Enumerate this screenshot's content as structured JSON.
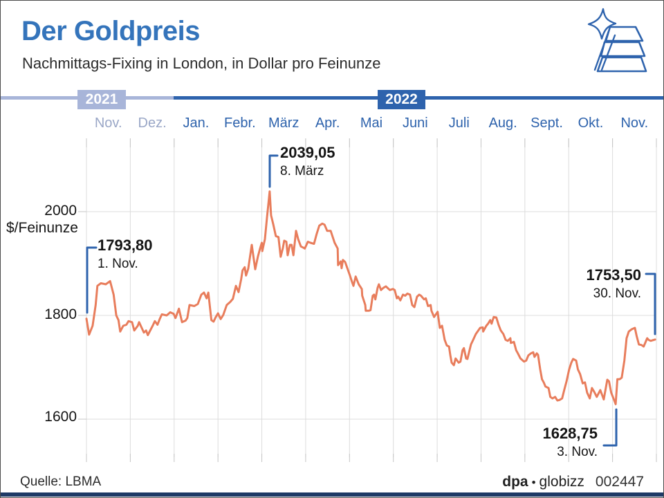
{
  "header": {
    "title": "Der Goldpreis",
    "subtitle": "Nachmittags-Fixing in London, in Dollar pro Feinunze"
  },
  "timeline": {
    "years": [
      {
        "label": "2021"
      },
      {
        "label": "2022"
      }
    ]
  },
  "months": [
    {
      "label": "Nov.",
      "year": "2021"
    },
    {
      "label": "Dez.",
      "year": "2021"
    },
    {
      "label": "Jan.",
      "year": "2022"
    },
    {
      "label": "Febr.",
      "year": "2022"
    },
    {
      "label": "März",
      "year": "2022"
    },
    {
      "label": "Apr.",
      "year": "2022"
    },
    {
      "label": "Mai",
      "year": "2022"
    },
    {
      "label": "Juni",
      "year": "2022"
    },
    {
      "label": "Juli",
      "year": "2022"
    },
    {
      "label": "Aug.",
      "year": "2022"
    },
    {
      "label": "Sept.",
      "year": "2022"
    },
    {
      "label": "Okt.",
      "year": "2022"
    },
    {
      "label": "Nov.",
      "year": "2022"
    }
  ],
  "axis": {
    "unit": "$/Feinunze",
    "ticks": [
      "2000",
      "1800",
      "1600"
    ]
  },
  "annotations": {
    "peak": {
      "value": "2039,05",
      "date": "8. März"
    },
    "start": {
      "value": "1793,80",
      "date": "1. Nov."
    },
    "end": {
      "value": "1753,50",
      "date": "30. Nov."
    },
    "low": {
      "value": "1628,75",
      "date": "3. Nov."
    }
  },
  "footer": {
    "source": "Quelle: LBMA",
    "brand_dpa": "dpa",
    "brand_sep": "•",
    "brand_name": "globizz",
    "code": "002447"
  },
  "colors": {
    "title_blue": "#3474bb",
    "accent_blue": "#2e63ad",
    "light_blue": "#a8b5d9",
    "month_2021": "#9aa7c7",
    "line_color": "#e87d5c",
    "grid_color": "#dcdcdc",
    "tick_color": "#c4c4c4"
  },
  "chart_data": {
    "type": "line",
    "title": "Der Goldpreis",
    "subtitle": "Nachmittags-Fixing in London, in Dollar pro Feinunze",
    "ylabel": "$/Feinunze",
    "x_axis": {
      "start": "1. Nov. 2021",
      "end": "30. Nov. 2022",
      "month_labels": [
        "Nov.",
        "Dez.",
        "Jan.",
        "Febr.",
        "März",
        "Apr.",
        "Mai",
        "Juni",
        "Juli",
        "Aug.",
        "Sept.",
        "Okt.",
        "Nov."
      ]
    },
    "y_axis": {
      "ticks": [
        2000,
        1800,
        1600
      ],
      "range": [
        1580,
        2070
      ],
      "grid": true
    },
    "key_points": {
      "start": {
        "date": "1. Nov. 2021",
        "value": 1793.8
      },
      "peak": {
        "date": "8. März 2022",
        "value": 2039.05
      },
      "low": {
        "date": "3. Nov. 2022",
        "value": 1628.75
      },
      "end": {
        "date": "30. Nov. 2022",
        "value": 1753.5
      }
    },
    "series": [
      {
        "name": "Goldpreis Nachmittags-Fixing London",
        "color": "#e87d5c",
        "x_unit": "months_from_nov_2021",
        "points": [
          [
            0.0,
            1793.8
          ],
          [
            0.06,
            1763
          ],
          [
            0.14,
            1780
          ],
          [
            0.21,
            1820
          ],
          [
            0.25,
            1857
          ],
          [
            0.33,
            1862
          ],
          [
            0.44,
            1860
          ],
          [
            0.54,
            1866
          ],
          [
            0.62,
            1840
          ],
          [
            0.68,
            1800
          ],
          [
            0.73,
            1791
          ],
          [
            0.77,
            1769
          ],
          [
            0.84,
            1780
          ],
          [
            0.91,
            1782
          ],
          [
            0.96,
            1789
          ],
          [
            1.04,
            1787
          ],
          [
            1.09,
            1771
          ],
          [
            1.17,
            1780
          ],
          [
            1.2,
            1787
          ],
          [
            1.31,
            1767
          ],
          [
            1.36,
            1771
          ],
          [
            1.4,
            1762
          ],
          [
            1.51,
            1780
          ],
          [
            1.56,
            1789
          ],
          [
            1.62,
            1782
          ],
          [
            1.67,
            1793
          ],
          [
            1.72,
            1802
          ],
          [
            1.83,
            1800
          ],
          [
            1.91,
            1806
          ],
          [
            1.99,
            1803
          ],
          [
            2.03,
            1795
          ],
          [
            2.11,
            1813
          ],
          [
            2.18,
            1787
          ],
          [
            2.26,
            1790
          ],
          [
            2.3,
            1795
          ],
          [
            2.35,
            1820
          ],
          [
            2.46,
            1818
          ],
          [
            2.54,
            1822
          ],
          [
            2.62,
            1840
          ],
          [
            2.68,
            1844
          ],
          [
            2.74,
            1833
          ],
          [
            2.78,
            1844
          ],
          [
            2.85,
            1791
          ],
          [
            2.9,
            1788
          ],
          [
            2.95,
            1797
          ],
          [
            3.0,
            1804
          ],
          [
            3.06,
            1793
          ],
          [
            3.12,
            1801
          ],
          [
            3.2,
            1820
          ],
          [
            3.28,
            1826
          ],
          [
            3.34,
            1832
          ],
          [
            3.41,
            1857
          ],
          [
            3.47,
            1845
          ],
          [
            3.53,
            1870
          ],
          [
            3.56,
            1887
          ],
          [
            3.61,
            1893
          ],
          [
            3.64,
            1877
          ],
          [
            3.69,
            1890
          ],
          [
            3.77,
            1936
          ],
          [
            3.83,
            1900
          ],
          [
            3.85,
            1889
          ],
          [
            3.91,
            1913
          ],
          [
            3.96,
            1929
          ],
          [
            4.0,
            1940
          ],
          [
            4.01,
            1924
          ],
          [
            4.07,
            1947
          ],
          [
            4.12,
            1990
          ],
          [
            4.18,
            2039.05
          ],
          [
            4.21,
            1993
          ],
          [
            4.26,
            1976
          ],
          [
            4.32,
            1953
          ],
          [
            4.38,
            1951
          ],
          [
            4.43,
            1913
          ],
          [
            4.48,
            1930
          ],
          [
            4.51,
            1944
          ],
          [
            4.56,
            1942
          ],
          [
            4.59,
            1916
          ],
          [
            4.64,
            1936
          ],
          [
            4.68,
            1936
          ],
          [
            4.72,
            1916
          ],
          [
            4.78,
            1963
          ],
          [
            4.83,
            1947
          ],
          [
            4.89,
            1933
          ],
          [
            4.94,
            1931
          ],
          [
            4.98,
            1929
          ],
          [
            5.05,
            1942
          ],
          [
            5.11,
            1940
          ],
          [
            5.19,
            1938
          ],
          [
            5.25,
            1957
          ],
          [
            5.31,
            1973
          ],
          [
            5.38,
            1977
          ],
          [
            5.43,
            1975
          ],
          [
            5.49,
            1963
          ],
          [
            5.57,
            1963
          ],
          [
            5.66,
            1940
          ],
          [
            5.73,
            1929
          ],
          [
            5.74,
            1897
          ],
          [
            5.8,
            1904
          ],
          [
            5.82,
            1891
          ],
          [
            5.85,
            1907
          ],
          [
            5.9,
            1903
          ],
          [
            6.01,
            1877
          ],
          [
            6.06,
            1864
          ],
          [
            6.09,
            1857
          ],
          [
            6.14,
            1875
          ],
          [
            6.21,
            1860
          ],
          [
            6.28,
            1851
          ],
          [
            6.29,
            1838
          ],
          [
            6.36,
            1820
          ],
          [
            6.37,
            1809
          ],
          [
            6.44,
            1809
          ],
          [
            6.48,
            1810
          ],
          [
            6.53,
            1838
          ],
          [
            6.56,
            1840
          ],
          [
            6.59,
            1831
          ],
          [
            6.64,
            1853
          ],
          [
            6.67,
            1860
          ],
          [
            6.72,
            1849
          ],
          [
            6.77,
            1853
          ],
          [
            6.83,
            1856
          ],
          [
            6.92,
            1849
          ],
          [
            6.99,
            1851
          ],
          [
            7.03,
            1849
          ],
          [
            7.08,
            1833
          ],
          [
            7.11,
            1836
          ],
          [
            7.16,
            1829
          ],
          [
            7.22,
            1840
          ],
          [
            7.27,
            1838
          ],
          [
            7.32,
            1842
          ],
          [
            7.38,
            1840
          ],
          [
            7.43,
            1820
          ],
          [
            7.48,
            1816
          ],
          [
            7.54,
            1836
          ],
          [
            7.59,
            1840
          ],
          [
            7.63,
            1838
          ],
          [
            7.7,
            1831
          ],
          [
            7.74,
            1833
          ],
          [
            7.79,
            1818
          ],
          [
            7.85,
            1820
          ],
          [
            7.87,
            1809
          ],
          [
            7.93,
            1797
          ],
          [
            8.01,
            1807
          ],
          [
            8.06,
            1776
          ],
          [
            8.11,
            1780
          ],
          [
            8.17,
            1753
          ],
          [
            8.22,
            1742
          ],
          [
            8.27,
            1740
          ],
          [
            8.3,
            1723
          ],
          [
            8.33,
            1709
          ],
          [
            8.38,
            1704
          ],
          [
            8.42,
            1717
          ],
          [
            8.49,
            1709
          ],
          [
            8.53,
            1711
          ],
          [
            8.58,
            1733
          ],
          [
            8.61,
            1737
          ],
          [
            8.66,
            1717
          ],
          [
            8.69,
            1716
          ],
          [
            8.77,
            1744
          ],
          [
            8.82,
            1753
          ],
          [
            8.88,
            1764
          ],
          [
            8.98,
            1776
          ],
          [
            9.04,
            1777
          ],
          [
            9.05,
            1769
          ],
          [
            9.12,
            1780
          ],
          [
            9.16,
            1784
          ],
          [
            9.21,
            1791
          ],
          [
            9.24,
            1784
          ],
          [
            9.29,
            1797
          ],
          [
            9.35,
            1796
          ],
          [
            9.4,
            1782
          ],
          [
            9.45,
            1771
          ],
          [
            9.51,
            1764
          ],
          [
            9.56,
            1753
          ],
          [
            9.61,
            1751
          ],
          [
            9.67,
            1756
          ],
          [
            9.68,
            1747
          ],
          [
            9.75,
            1749
          ],
          [
            9.8,
            1733
          ],
          [
            9.84,
            1727
          ],
          [
            9.9,
            1717
          ],
          [
            9.98,
            1711
          ],
          [
            10.03,
            1713
          ],
          [
            10.08,
            1723
          ],
          [
            10.14,
            1727
          ],
          [
            10.19,
            1729
          ],
          [
            10.22,
            1720
          ],
          [
            10.27,
            1727
          ],
          [
            10.3,
            1724
          ],
          [
            10.35,
            1696
          ],
          [
            10.39,
            1677
          ],
          [
            10.43,
            1671
          ],
          [
            10.47,
            1663
          ],
          [
            10.54,
            1660
          ],
          [
            10.58,
            1643
          ],
          [
            10.63,
            1640
          ],
          [
            10.69,
            1643
          ],
          [
            10.74,
            1636
          ],
          [
            10.79,
            1637
          ],
          [
            10.85,
            1640
          ],
          [
            10.9,
            1657
          ],
          [
            10.95,
            1673
          ],
          [
            11.01,
            1696
          ],
          [
            11.06,
            1709
          ],
          [
            11.1,
            1716
          ],
          [
            11.17,
            1713
          ],
          [
            11.21,
            1696
          ],
          [
            11.26,
            1687
          ],
          [
            11.32,
            1669
          ],
          [
            11.37,
            1671
          ],
          [
            11.42,
            1651
          ],
          [
            11.48,
            1640
          ],
          [
            11.53,
            1660
          ],
          [
            11.58,
            1653
          ],
          [
            11.64,
            1643
          ],
          [
            11.72,
            1656
          ],
          [
            11.8,
            1638
          ],
          [
            11.88,
            1676
          ],
          [
            11.92,
            1673
          ],
          [
            11.97,
            1651
          ],
          [
            12.03,
            1638
          ],
          [
            12.07,
            1628.75
          ],
          [
            12.11,
            1677
          ],
          [
            12.16,
            1677
          ],
          [
            12.21,
            1680
          ],
          [
            12.27,
            1713
          ],
          [
            12.32,
            1756
          ],
          [
            12.37,
            1769
          ],
          [
            12.43,
            1773
          ],
          [
            12.51,
            1776
          ],
          [
            12.55,
            1760
          ],
          [
            12.6,
            1744
          ],
          [
            12.66,
            1743
          ],
          [
            12.71,
            1740
          ],
          [
            12.79,
            1756
          ],
          [
            12.82,
            1753
          ],
          [
            12.87,
            1751
          ],
          [
            12.91,
            1752
          ],
          [
            12.97,
            1753.5
          ]
        ]
      }
    ]
  }
}
